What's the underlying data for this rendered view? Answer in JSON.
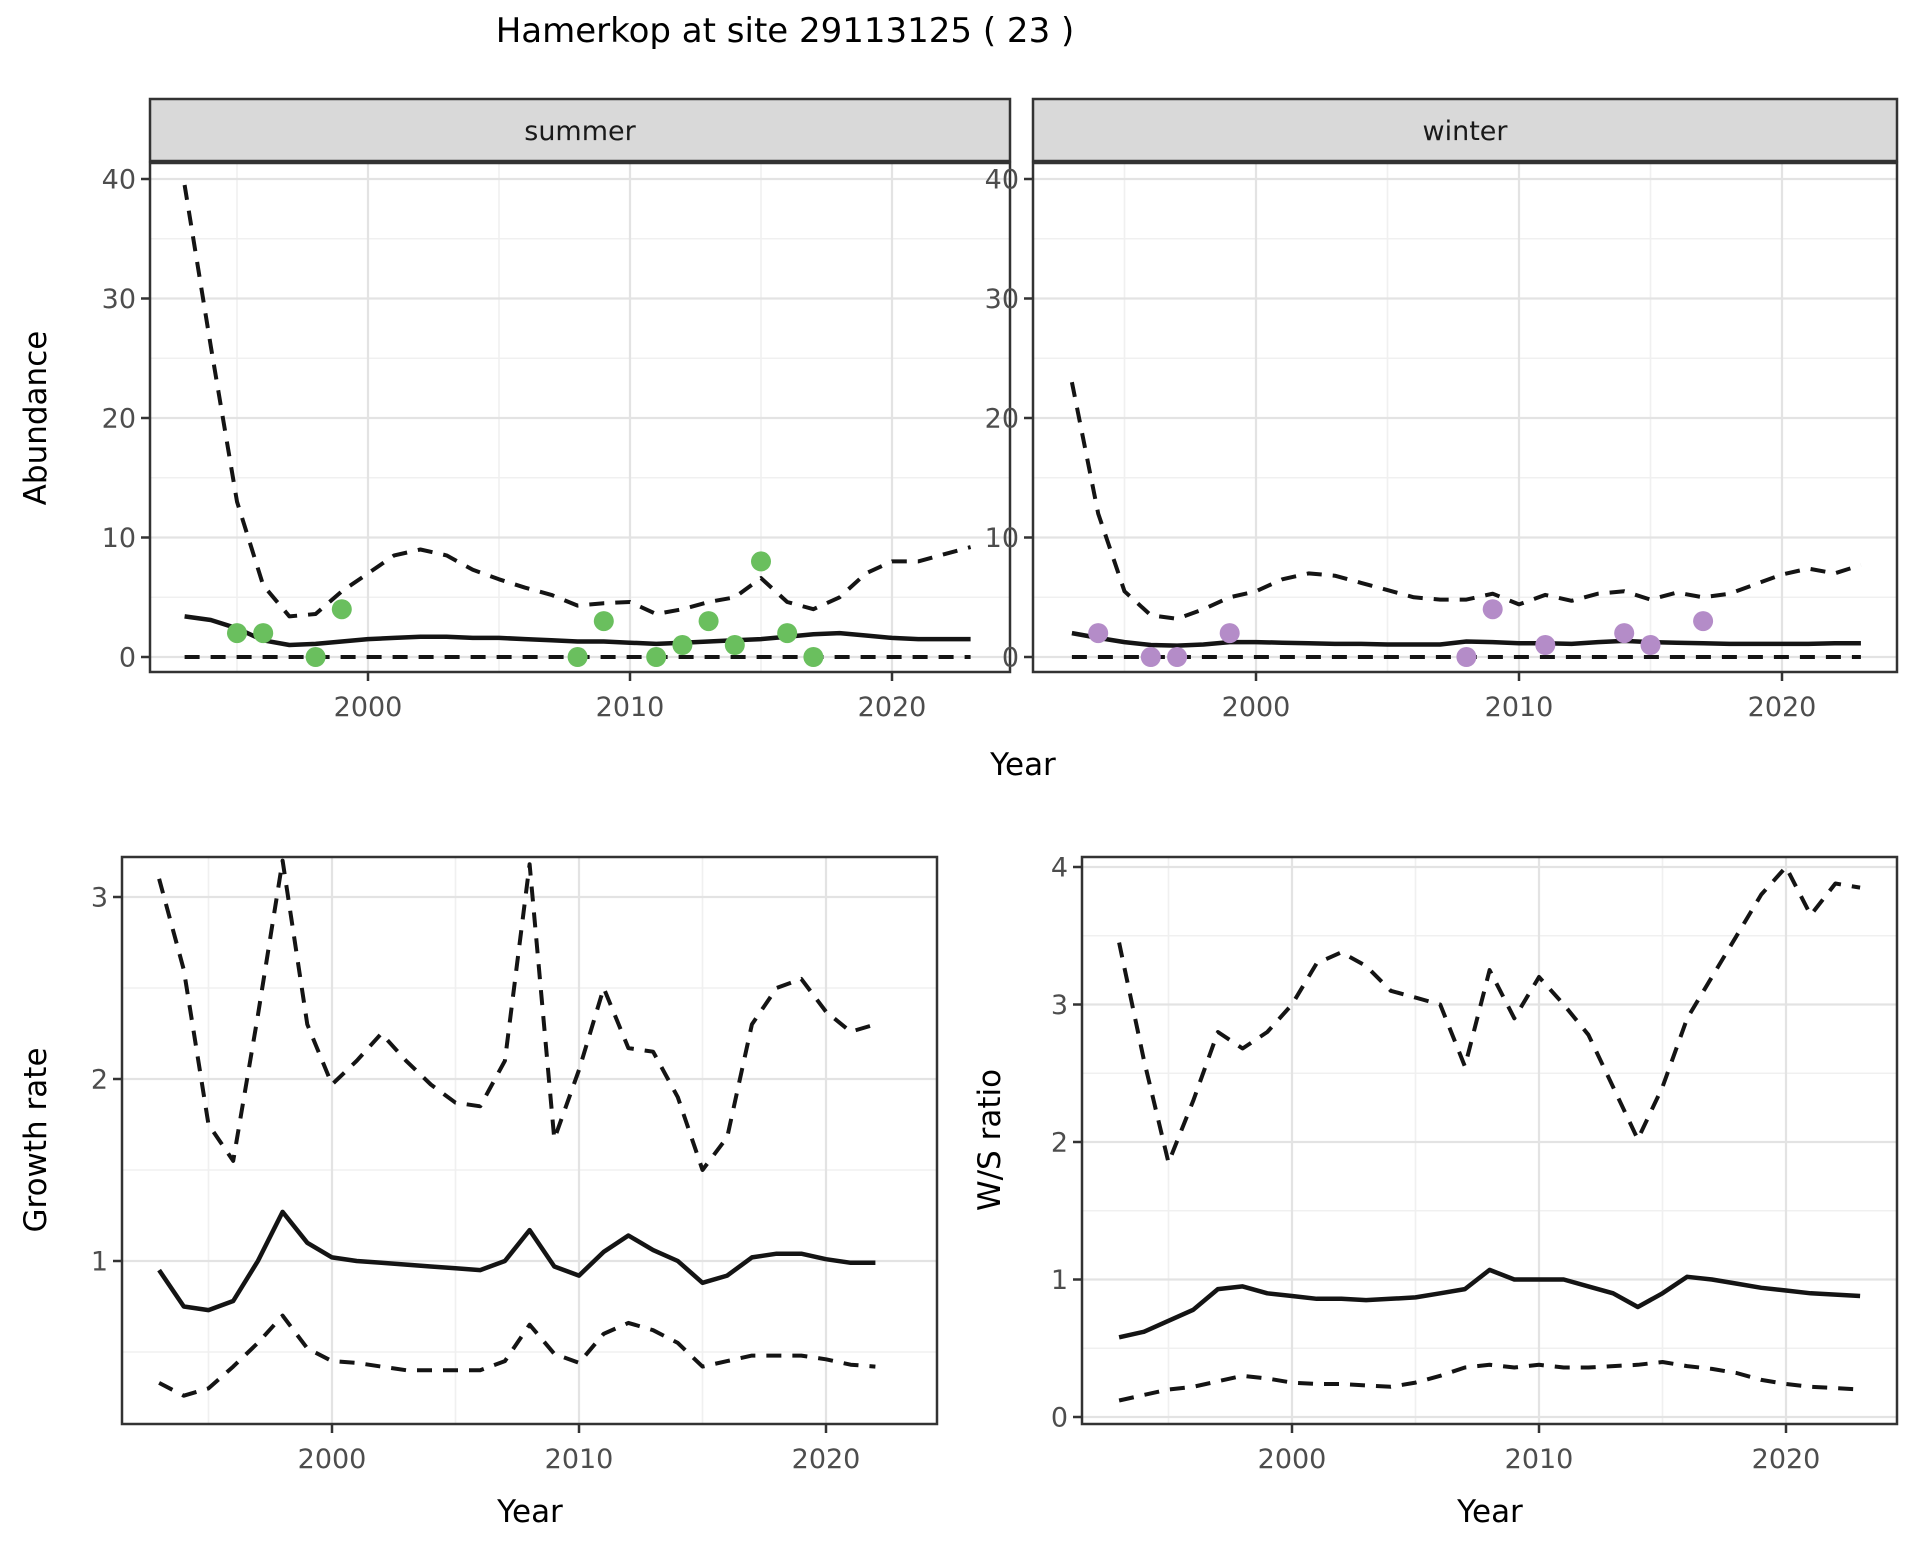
{
  "title": "Hamerkop at site 29113125 ( 23 )",
  "colors": {
    "background": "#ffffff",
    "line": "#141414",
    "summer_point": "#6abf5e",
    "winter_point": "#b48cc8",
    "strip_bg": "#d9d9d9",
    "strip_border": "#333333",
    "panel_border": "#333333",
    "grid_major": "#e3e3e3",
    "grid_minor": "#f0f0f0",
    "tick_text": "#4d4d4d"
  },
  "chart_data": [
    {
      "key": "abundance_summer",
      "type": "line",
      "facet_label": "summer",
      "xlabel": "Year",
      "ylabel": "Abundance",
      "legend": "none",
      "grid": "on",
      "xlim": [
        1991.6,
        2024.4
      ],
      "ylim": [
        -1.3,
        41.6
      ],
      "xticks": [
        2000,
        2010,
        2020
      ],
      "x_minor": [
        1995,
        2005,
        2015
      ],
      "yticks": [
        0,
        10,
        20,
        30,
        40
      ],
      "y_minor": [
        5,
        15,
        25,
        35
      ],
      "x": [
        1993,
        1994,
        1995,
        1996,
        1997,
        1998,
        1999,
        2000,
        2001,
        2002,
        2003,
        2004,
        2005,
        2006,
        2007,
        2008,
        2009,
        2010,
        2011,
        2012,
        2013,
        2014,
        2015,
        2016,
        2017,
        2018,
        2019,
        2020,
        2021,
        2022,
        2023
      ],
      "series": [
        {
          "name": "upper_ci",
          "linestyle": "dashed",
          "values": [
            39.5,
            26,
            13,
            6,
            3.4,
            3.6,
            5.5,
            7,
            8.5,
            9,
            8.5,
            7.3,
            6.5,
            5.8,
            5.2,
            4.3,
            4.5,
            4.6,
            3.6,
            4,
            4.6,
            5,
            6.6,
            4.6,
            4,
            5,
            7,
            8,
            8,
            8.6,
            9.2
          ]
        },
        {
          "name": "median",
          "linestyle": "solid",
          "values": [
            3.4,
            3.1,
            2.4,
            1.4,
            1.0,
            1.1,
            1.3,
            1.5,
            1.6,
            1.7,
            1.7,
            1.6,
            1.6,
            1.5,
            1.4,
            1.3,
            1.3,
            1.2,
            1.1,
            1.2,
            1.3,
            1.4,
            1.5,
            1.7,
            1.9,
            2.0,
            1.8,
            1.6,
            1.5,
            1.5,
            1.5
          ]
        },
        {
          "name": "lower_ci",
          "linestyle": "dashed",
          "values": [
            0,
            0,
            0,
            0,
            0,
            0,
            0,
            0,
            0,
            0,
            0,
            0,
            0,
            0,
            0,
            0,
            0,
            0,
            0,
            0,
            0,
            0,
            0,
            0,
            0,
            0,
            0,
            0,
            0,
            0,
            0
          ]
        }
      ],
      "points": {
        "name": "observed_counts",
        "color_key": "summer_point",
        "data": [
          [
            1995,
            2
          ],
          [
            1996,
            2
          ],
          [
            1998,
            0
          ],
          [
            1999,
            4
          ],
          [
            2008,
            0
          ],
          [
            2009,
            3
          ],
          [
            2011,
            0
          ],
          [
            2012,
            1
          ],
          [
            2013,
            3
          ],
          [
            2014,
            1
          ],
          [
            2015,
            8
          ],
          [
            2016,
            2
          ],
          [
            2017,
            0
          ]
        ]
      }
    },
    {
      "key": "abundance_winter",
      "type": "line",
      "facet_label": "winter",
      "xlabel": "Year",
      "ylabel": "Abundance",
      "legend": "none",
      "grid": "on",
      "xlim": [
        1991.6,
        2024.4
      ],
      "ylim": [
        -1.3,
        41.6
      ],
      "xticks": [
        2000,
        2010,
        2020
      ],
      "x_minor": [
        1995,
        2005,
        2015
      ],
      "yticks": [
        0,
        10,
        20,
        30,
        40
      ],
      "y_minor": [
        5,
        15,
        25,
        35
      ],
      "x": [
        1993,
        1994,
        1995,
        1996,
        1997,
        1998,
        1999,
        2000,
        2001,
        2002,
        2003,
        2004,
        2005,
        2006,
        2007,
        2008,
        2009,
        2010,
        2011,
        2012,
        2013,
        2014,
        2015,
        2016,
        2017,
        2018,
        2019,
        2020,
        2021,
        2022,
        2023
      ],
      "series": [
        {
          "name": "upper_ci",
          "linestyle": "dashed",
          "values": [
            23,
            12,
            5.5,
            3.5,
            3.2,
            4,
            5,
            5.5,
            6.5,
            7,
            6.8,
            6.2,
            5.6,
            5,
            4.8,
            4.8,
            5.3,
            4.4,
            5.2,
            4.7,
            5.3,
            5.5,
            4.8,
            5.4,
            5,
            5.3,
            6.1,
            6.9,
            7.4,
            7,
            7.7
          ]
        },
        {
          "name": "median",
          "linestyle": "solid",
          "values": [
            2.0,
            1.6,
            1.25,
            1.0,
            0.95,
            1.05,
            1.25,
            1.25,
            1.2,
            1.15,
            1.1,
            1.1,
            1.05,
            1.05,
            1.05,
            1.3,
            1.25,
            1.15,
            1.15,
            1.1,
            1.25,
            1.35,
            1.25,
            1.2,
            1.15,
            1.1,
            1.1,
            1.1,
            1.1,
            1.15,
            1.15
          ]
        },
        {
          "name": "lower_ci",
          "linestyle": "dashed",
          "values": [
            0,
            0,
            0,
            0,
            0,
            0,
            0,
            0,
            0,
            0,
            0,
            0,
            0,
            0,
            0,
            0,
            0,
            0,
            0,
            0,
            0,
            0,
            0,
            0,
            0,
            0,
            0,
            0,
            0,
            0,
            0
          ]
        }
      ],
      "points": {
        "name": "observed_counts",
        "color_key": "winter_point",
        "data": [
          [
            1994,
            2
          ],
          [
            1996,
            0
          ],
          [
            1997,
            0
          ],
          [
            1999,
            2
          ],
          [
            2008,
            0
          ],
          [
            2009,
            4
          ],
          [
            2011,
            1
          ],
          [
            2014,
            2
          ],
          [
            2015,
            1
          ],
          [
            2017,
            3
          ]
        ]
      }
    },
    {
      "key": "growth_rate",
      "type": "line",
      "facet_label": "",
      "xlabel": "Year",
      "ylabel": "Growth rate",
      "legend": "none",
      "grid": "on",
      "xlim": [
        1991.5,
        2024.5
      ],
      "ylim": [
        0.1,
        3.22
      ],
      "xticks": [
        2000,
        2010,
        2020
      ],
      "x_minor": [
        1995,
        2005,
        2015
      ],
      "yticks": [
        1,
        2,
        3
      ],
      "y_minor": [
        0.5,
        1.5,
        2.5
      ],
      "x": [
        1993,
        1994,
        1995,
        1996,
        1997,
        1998,
        1999,
        2000,
        2001,
        2002,
        2003,
        2004,
        2005,
        2006,
        2007,
        2008,
        2009,
        2010,
        2011,
        2012,
        2013,
        2014,
        2015,
        2016,
        2017,
        2018,
        2019,
        2020,
        2021,
        2022
      ],
      "series": [
        {
          "name": "upper_ci",
          "linestyle": "dashed",
          "values": [
            3.1,
            2.6,
            1.75,
            1.55,
            2.35,
            3.2,
            2.3,
            1.97,
            2.1,
            2.25,
            2.1,
            1.97,
            1.87,
            1.85,
            2.1,
            3.18,
            1.67,
            2.05,
            2.5,
            2.17,
            2.15,
            1.9,
            1.5,
            1.68,
            2.3,
            2.5,
            2.55,
            2.37,
            2.26,
            2.3
          ]
        },
        {
          "name": "median",
          "linestyle": "solid",
          "values": [
            0.95,
            0.75,
            0.73,
            0.78,
            1.0,
            1.27,
            1.1,
            1.02,
            1.0,
            0.99,
            0.98,
            0.97,
            0.96,
            0.95,
            1.0,
            1.17,
            0.97,
            0.92,
            1.05,
            1.14,
            1.06,
            1.0,
            0.88,
            0.92,
            1.02,
            1.04,
            1.04,
            1.01,
            0.99,
            0.99
          ]
        },
        {
          "name": "lower_ci",
          "linestyle": "dashed",
          "values": [
            0.33,
            0.26,
            0.3,
            0.42,
            0.55,
            0.7,
            0.52,
            0.45,
            0.44,
            0.42,
            0.4,
            0.4,
            0.4,
            0.4,
            0.45,
            0.65,
            0.49,
            0.44,
            0.6,
            0.66,
            0.62,
            0.55,
            0.42,
            0.45,
            0.48,
            0.48,
            0.48,
            0.46,
            0.43,
            0.42
          ]
        }
      ],
      "points": null
    },
    {
      "key": "ws_ratio",
      "type": "line",
      "facet_label": "",
      "xlabel": "Year",
      "ylabel": "W/S ratio",
      "legend": "none",
      "grid": "on",
      "xlim": [
        1991.5,
        2024.5
      ],
      "ylim": [
        -0.05,
        4.07
      ],
      "xticks": [
        2000,
        2010,
        2020
      ],
      "x_minor": [
        1995,
        2005,
        2015
      ],
      "yticks": [
        0,
        1,
        2,
        3,
        4
      ],
      "y_minor": [
        0.5,
        1.5,
        2.5,
        3.5
      ],
      "x": [
        1993,
        1994,
        1995,
        1996,
        1997,
        1998,
        1999,
        2000,
        2001,
        2002,
        2003,
        2004,
        2005,
        2006,
        2007,
        2008,
        2009,
        2010,
        2011,
        2012,
        2013,
        2014,
        2015,
        2016,
        2017,
        2018,
        2019,
        2020,
        2021,
        2022,
        2023
      ],
      "series": [
        {
          "name": "upper_ci",
          "linestyle": "dashed",
          "values": [
            3.45,
            2.6,
            1.85,
            2.3,
            2.8,
            2.68,
            2.8,
            3.0,
            3.3,
            3.38,
            3.28,
            3.1,
            3.05,
            3.0,
            2.55,
            3.25,
            2.9,
            3.2,
            3.0,
            2.78,
            2.4,
            2.02,
            2.4,
            2.9,
            3.2,
            3.5,
            3.8,
            4.0,
            3.65,
            3.88,
            3.85
          ]
        },
        {
          "name": "median",
          "linestyle": "solid",
          "values": [
            0.58,
            0.62,
            0.7,
            0.78,
            0.93,
            0.95,
            0.9,
            0.88,
            0.86,
            0.86,
            0.85,
            0.86,
            0.87,
            0.9,
            0.93,
            1.07,
            1.0,
            1.0,
            1.0,
            0.95,
            0.9,
            0.8,
            0.9,
            1.02,
            1.0,
            0.97,
            0.94,
            0.92,
            0.9,
            0.89,
            0.88
          ]
        },
        {
          "name": "lower_ci",
          "linestyle": "dashed",
          "values": [
            0.12,
            0.16,
            0.2,
            0.22,
            0.26,
            0.3,
            0.28,
            0.25,
            0.24,
            0.24,
            0.23,
            0.22,
            0.25,
            0.3,
            0.36,
            0.38,
            0.36,
            0.38,
            0.36,
            0.36,
            0.37,
            0.38,
            0.4,
            0.37,
            0.35,
            0.32,
            0.27,
            0.24,
            0.22,
            0.21,
            0.2
          ]
        }
      ],
      "points": null
    }
  ]
}
